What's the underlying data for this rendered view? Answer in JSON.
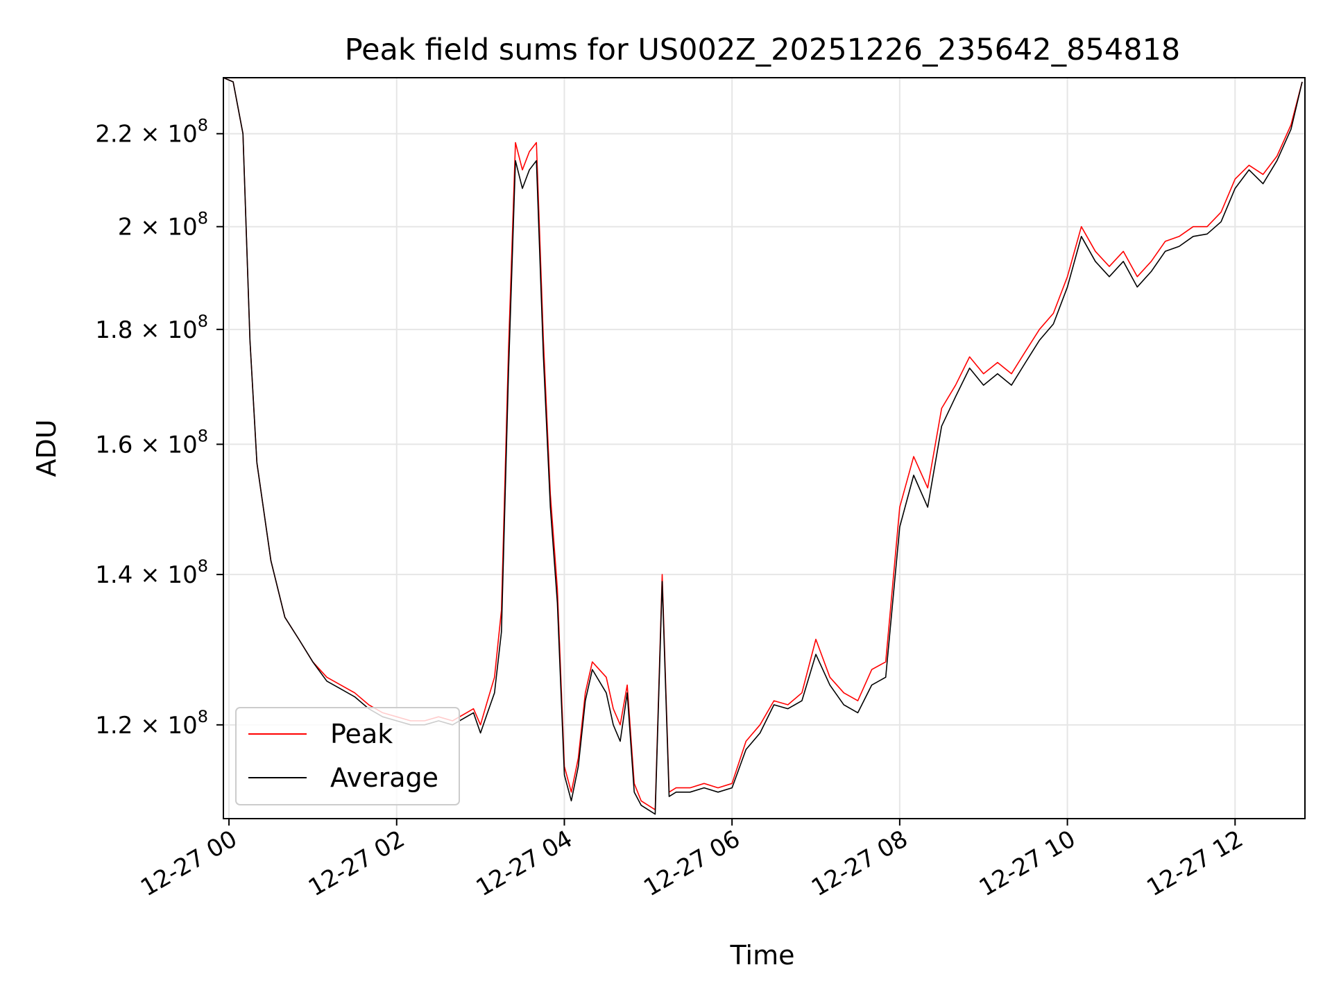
{
  "chart_data": {
    "type": "line",
    "title": "Peak field sums for US002Z_20251226_235642_854818",
    "xlabel": "Time",
    "ylabel": "ADU",
    "y_scale": "log",
    "grid": true,
    "legend_position": "lower-left",
    "xlim": [
      "2025-12-26 23:56",
      "2025-12-27 12:50"
    ],
    "ylim": [
      109000000,
      233000000
    ],
    "x_ticks": [
      {
        "t": "2025-12-27 00:00",
        "label": "12-27 00"
      },
      {
        "t": "2025-12-27 02:00",
        "label": "12-27 02"
      },
      {
        "t": "2025-12-27 04:00",
        "label": "12-27 04"
      },
      {
        "t": "2025-12-27 06:00",
        "label": "12-27 06"
      },
      {
        "t": "2025-12-27 08:00",
        "label": "12-27 08"
      },
      {
        "t": "2025-12-27 10:00",
        "label": "12-27 10"
      },
      {
        "t": "2025-12-27 12:00",
        "label": "12-27 12"
      }
    ],
    "y_ticks": [
      {
        "value": 120000000,
        "mantissa": "1.2",
        "base": "10",
        "exp": "8"
      },
      {
        "value": 140000000,
        "mantissa": "1.4",
        "base": "10",
        "exp": "8"
      },
      {
        "value": 160000000,
        "mantissa": "1.6",
        "base": "10",
        "exp": "8"
      },
      {
        "value": 180000000,
        "mantissa": "1.8",
        "base": "10",
        "exp": "8"
      },
      {
        "value": 200000000,
        "mantissa": "2",
        "base": "10",
        "exp": "8"
      },
      {
        "value": 220000000,
        "mantissa": "2.2",
        "base": "10",
        "exp": "8"
      }
    ],
    "x": [
      "2025-12-26 23:56",
      "2025-12-27 00:03",
      "2025-12-27 00:10",
      "2025-12-27 00:15",
      "2025-12-27 00:20",
      "2025-12-27 00:30",
      "2025-12-27 00:40",
      "2025-12-27 00:50",
      "2025-12-27 01:00",
      "2025-12-27 01:10",
      "2025-12-27 01:20",
      "2025-12-27 01:30",
      "2025-12-27 01:40",
      "2025-12-27 01:50",
      "2025-12-27 02:00",
      "2025-12-27 02:10",
      "2025-12-27 02:20",
      "2025-12-27 02:30",
      "2025-12-27 02:40",
      "2025-12-27 02:50",
      "2025-12-27 02:55",
      "2025-12-27 03:00",
      "2025-12-27 03:05",
      "2025-12-27 03:10",
      "2025-12-27 03:15",
      "2025-12-27 03:20",
      "2025-12-27 03:25",
      "2025-12-27 03:30",
      "2025-12-27 03:35",
      "2025-12-27 03:40",
      "2025-12-27 03:45",
      "2025-12-27 03:50",
      "2025-12-27 03:55",
      "2025-12-27 04:00",
      "2025-12-27 04:05",
      "2025-12-27 04:10",
      "2025-12-27 04:15",
      "2025-12-27 04:20",
      "2025-12-27 04:30",
      "2025-12-27 04:35",
      "2025-12-27 04:40",
      "2025-12-27 04:45",
      "2025-12-27 04:50",
      "2025-12-27 04:55",
      "2025-12-27 05:00",
      "2025-12-27 05:05",
      "2025-12-27 05:10",
      "2025-12-27 05:15",
      "2025-12-27 05:20",
      "2025-12-27 05:30",
      "2025-12-27 05:40",
      "2025-12-27 05:50",
      "2025-12-27 06:00",
      "2025-12-27 06:10",
      "2025-12-27 06:20",
      "2025-12-27 06:30",
      "2025-12-27 06:40",
      "2025-12-27 06:50",
      "2025-12-27 07:00",
      "2025-12-27 07:10",
      "2025-12-27 07:20",
      "2025-12-27 07:30",
      "2025-12-27 07:40",
      "2025-12-27 07:50",
      "2025-12-27 08:00",
      "2025-12-27 08:10",
      "2025-12-27 08:20",
      "2025-12-27 08:30",
      "2025-12-27 08:40",
      "2025-12-27 08:50",
      "2025-12-27 09:00",
      "2025-12-27 09:10",
      "2025-12-27 09:20",
      "2025-12-27 09:30",
      "2025-12-27 09:40",
      "2025-12-27 09:50",
      "2025-12-27 10:00",
      "2025-12-27 10:10",
      "2025-12-27 10:20",
      "2025-12-27 10:30",
      "2025-12-27 10:40",
      "2025-12-27 10:50",
      "2025-12-27 11:00",
      "2025-12-27 11:10",
      "2025-12-27 11:20",
      "2025-12-27 11:30",
      "2025-12-27 11:40",
      "2025-12-27 11:50",
      "2025-12-27 12:00",
      "2025-12-27 12:10",
      "2025-12-27 12:20",
      "2025-12-27 12:30",
      "2025-12-27 12:40",
      "2025-12-27 12:48"
    ],
    "series": [
      {
        "name": "Peak",
        "color": "#ff0000",
        "values": [
          233000000,
          232000000,
          220000000,
          178000000,
          157000000,
          142000000,
          134000000,
          131000000,
          128000000,
          126000000,
          125000000,
          124000000,
          122500000,
          121500000,
          121000000,
          120500000,
          120500000,
          121000000,
          120500000,
          121500000,
          122000000,
          120000000,
          123000000,
          126000000,
          135000000,
          176000000,
          218000000,
          212000000,
          216000000,
          218000000,
          178000000,
          152000000,
          138000000,
          115000000,
          112000000,
          116000000,
          124000000,
          128000000,
          126000000,
          122000000,
          120000000,
          125000000,
          113000000,
          111000000,
          110500000,
          110000000,
          140000000,
          112000000,
          112500000,
          112500000,
          113000000,
          112500000,
          113000000,
          118000000,
          120000000,
          123000000,
          122500000,
          124000000,
          131000000,
          126000000,
          124000000,
          123000000,
          127000000,
          128000000,
          150000000,
          158000000,
          153000000,
          166000000,
          170000000,
          175000000,
          172000000,
          174000000,
          172000000,
          176000000,
          180000000,
          183000000,
          190000000,
          200000000,
          195000000,
          192000000,
          195000000,
          190000000,
          193000000,
          197000000,
          198000000,
          200000000,
          200000000,
          203000000,
          210000000,
          213000000,
          211000000,
          215000000,
          222000000,
          232000000
        ]
      },
      {
        "name": "Average",
        "color": "#000000",
        "values": [
          233000000,
          232000000,
          220000000,
          178000000,
          157000000,
          142000000,
          134000000,
          131000000,
          128000000,
          125500000,
          124500000,
          123500000,
          122000000,
          121000000,
          120500000,
          120000000,
          120000000,
          120500000,
          120000000,
          121000000,
          121500000,
          119000000,
          121500000,
          124000000,
          132000000,
          172000000,
          214000000,
          208000000,
          212000000,
          214000000,
          175000000,
          150000000,
          136000000,
          114000000,
          111000000,
          115000000,
          123000000,
          127000000,
          124000000,
          120000000,
          118000000,
          124000000,
          112000000,
          110500000,
          110000000,
          109500000,
          139000000,
          111500000,
          112000000,
          112000000,
          112500000,
          112000000,
          112500000,
          117000000,
          119000000,
          122500000,
          122000000,
          123000000,
          129000000,
          125000000,
          122500000,
          121500000,
          125000000,
          126000000,
          147000000,
          155000000,
          150000000,
          163000000,
          168000000,
          173000000,
          170000000,
          172000000,
          170000000,
          174000000,
          178000000,
          181000000,
          188000000,
          198000000,
          193000000,
          190000000,
          193000000,
          188000000,
          191000000,
          195000000,
          196000000,
          198000000,
          198500000,
          201000000,
          208000000,
          212000000,
          209000000,
          214000000,
          221000000,
          232000000
        ]
      }
    ]
  }
}
